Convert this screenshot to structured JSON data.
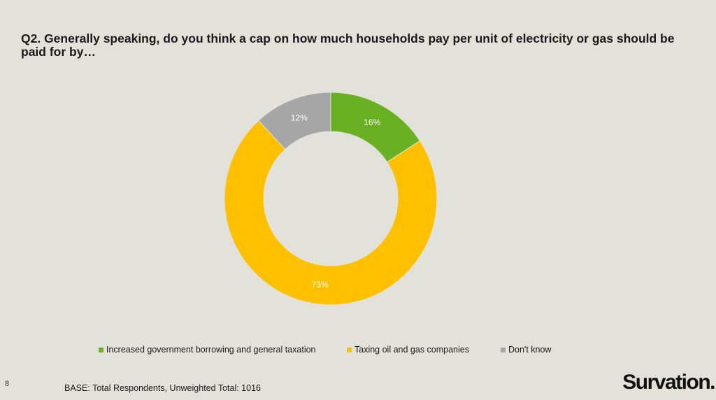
{
  "slide": {
    "page_number": "8",
    "question": "Q2. Generally speaking, do you think a cap on how much households pay per unit of electricity or gas should be paid for by…",
    "base_note": "BASE: Total Respondents, Unweighted Total: 1016",
    "brand": "Survation."
  },
  "chart_data": {
    "type": "pie",
    "donut": true,
    "title": "Q2. Generally speaking, do you think a cap on how much households pay per unit of electricity or gas should be paid for by…",
    "categories": [
      "Increased government borrowing and general taxation",
      "Taxing oil and gas companies",
      "Don't know"
    ],
    "values": [
      16,
      73,
      12
    ],
    "value_labels": [
      "16%",
      "73%",
      "12%"
    ],
    "colors": [
      "#6ab023",
      "#ffc000",
      "#a6a6a6"
    ],
    "label_color": "#ffffff",
    "legend_placement": "bottom",
    "start": "top, clockwise"
  }
}
